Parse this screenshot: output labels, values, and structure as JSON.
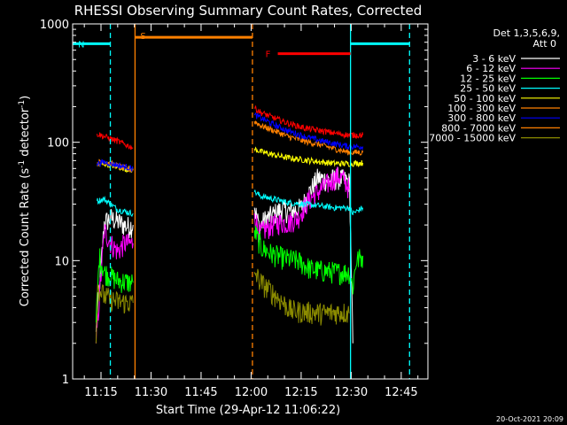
{
  "chart_data": {
    "type": "line",
    "title": "RHESSI Observing Summary Count Rates, Corrected",
    "xlabel": "Start Time (29-Apr-12 11:06:22)",
    "ylabel_main": "Corrected Count Rate (s",
    "ylabel_sup1": "-1",
    "ylabel_mid": " detector",
    "ylabel_sup2": "-1",
    "ylabel_end": ")",
    "yscale": "log",
    "ylim": [
      1,
      1000
    ],
    "xlim_minutes": [
      666.5,
      773.0
    ],
    "x_ticks": [
      {
        "t": 675,
        "label": "11:15"
      },
      {
        "t": 690,
        "label": "11:30"
      },
      {
        "t": 705,
        "label": "11:45"
      },
      {
        "t": 720,
        "label": "12:00"
      },
      {
        "t": 735,
        "label": "12:15"
      },
      {
        "t": 750,
        "label": "12:30"
      },
      {
        "t": 765,
        "label": "12:45"
      }
    ],
    "y_ticks": [
      {
        "v": 1,
        "label": "1"
      },
      {
        "v": 10,
        "label": "10"
      },
      {
        "v": 100,
        "label": "100"
      },
      {
        "v": 1000,
        "label": "1000"
      }
    ],
    "legend_title": [
      "Det 1,3,5,6,9,",
      "Att 0"
    ],
    "legend_position": "right",
    "series": [
      {
        "name": "3 - 6 keV",
        "color": "#ffffff",
        "a": [
          [
            673.5,
            2.5
          ],
          [
            676.0,
            21
          ],
          [
            678,
            23
          ],
          [
            682,
            20
          ],
          [
            683,
            19.5
          ],
          [
            684.6,
            20
          ]
        ],
        "b": [
          [
            721.0,
            28
          ],
          [
            722.5,
            19
          ],
          [
            724,
            22
          ],
          [
            726,
            24
          ],
          [
            729,
            27
          ],
          [
            732,
            26
          ],
          [
            735,
            28
          ],
          [
            738,
            40
          ],
          [
            740,
            50
          ],
          [
            743,
            48
          ],
          [
            746,
            50
          ],
          [
            748,
            48
          ],
          [
            749.5,
            46
          ],
          [
            750.5,
            2
          ]
        ]
      },
      {
        "name": "6 - 12 keV",
        "color": "#ff00ff",
        "a": [
          [
            673.5,
            2
          ],
          [
            676.0,
            18
          ],
          [
            678,
            14
          ],
          [
            680,
            12
          ],
          [
            682,
            14
          ],
          [
            684.6,
            14
          ]
        ],
        "b": [
          [
            721.0,
            25
          ],
          [
            722.5,
            17
          ],
          [
            725,
            19
          ],
          [
            728,
            21
          ],
          [
            731,
            21
          ],
          [
            734,
            23
          ],
          [
            737,
            32
          ],
          [
            740,
            38
          ],
          [
            743,
            45
          ],
          [
            746,
            52
          ],
          [
            748,
            48
          ],
          [
            749.5,
            40
          ]
        ]
      },
      {
        "name": "12 - 25 keV",
        "color": "#00ff00",
        "a": [
          [
            673.5,
            3
          ],
          [
            674.5,
            11
          ],
          [
            676.0,
            8
          ],
          [
            680,
            6.8
          ],
          [
            684.6,
            6.5
          ]
        ],
        "b": [
          [
            721.0,
            18
          ],
          [
            723,
            13
          ],
          [
            726,
            11.5
          ],
          [
            730,
            10.5
          ],
          [
            734,
            10
          ],
          [
            738,
            8.5
          ],
          [
            742,
            8.2
          ],
          [
            746,
            8
          ],
          [
            749.5,
            8
          ],
          [
            750.5,
            6
          ],
          [
            751.5,
            10
          ],
          [
            753.5,
            11
          ]
        ]
      },
      {
        "name": "25 - 50 keV",
        "color": "#00ffff",
        "a": [
          [
            673.8,
            32
          ],
          [
            676,
            33
          ],
          [
            680,
            27
          ],
          [
            684.6,
            25
          ]
        ],
        "b": [
          [
            721.0,
            38
          ],
          [
            723,
            35
          ],
          [
            727,
            33
          ],
          [
            731,
            31
          ],
          [
            736,
            30
          ],
          [
            741,
            29
          ],
          [
            745,
            28
          ],
          [
            749.5,
            28
          ],
          [
            750.5,
            25
          ],
          [
            753.5,
            28
          ]
        ]
      },
      {
        "name": "50 - 100 keV",
        "color": "#ffff00",
        "a": [
          [
            673.8,
            64
          ],
          [
            676,
            66
          ],
          [
            680,
            62
          ],
          [
            684.6,
            58
          ]
        ],
        "b": [
          [
            721.0,
            88
          ],
          [
            723,
            83
          ],
          [
            727,
            78
          ],
          [
            731,
            74
          ],
          [
            736,
            71
          ],
          [
            741,
            68
          ],
          [
            746,
            66
          ],
          [
            749.5,
            66
          ],
          [
            753.5,
            67
          ]
        ]
      },
      {
        "name": "100 - 300 keV",
        "color": "#ff8000",
        "a": [
          [
            673.8,
            67
          ],
          [
            676,
            69
          ],
          [
            680,
            63
          ],
          [
            684.6,
            58
          ]
        ],
        "b": [
          [
            721.0,
            150
          ],
          [
            723,
            138
          ],
          [
            727,
            125
          ],
          [
            731,
            112
          ],
          [
            736,
            102
          ],
          [
            741,
            95
          ],
          [
            745,
            88
          ],
          [
            749.5,
            82
          ],
          [
            753.5,
            82
          ]
        ]
      },
      {
        "name": "300 - 800 keV",
        "color": "#0000ff",
        "a": [
          [
            673.8,
            66
          ],
          [
            676,
            68
          ],
          [
            680,
            64
          ],
          [
            684.6,
            60
          ]
        ],
        "b": [
          [
            721.0,
            170
          ],
          [
            723,
            160
          ],
          [
            727,
            140
          ],
          [
            731,
            125
          ],
          [
            736,
            112
          ],
          [
            741,
            103
          ],
          [
            746,
            96
          ],
          [
            749.5,
            92
          ],
          [
            753.5,
            92
          ]
        ]
      },
      {
        "name": "800 - 7000 keV",
        "color": "#ff8000",
        "a": [],
        "b": []
      },
      {
        "name": "7000 - 15000 keV",
        "color": "#8b8b00",
        "a": [
          [
            673.5,
            2
          ],
          [
            674,
            6
          ],
          [
            676.0,
            5
          ],
          [
            680,
            4.5
          ],
          [
            684.6,
            4.4
          ]
        ],
        "b": [
          [
            721.0,
            8
          ],
          [
            723,
            6.5
          ],
          [
            726,
            5.5
          ],
          [
            729,
            4.6
          ],
          [
            732,
            3.8
          ],
          [
            737,
            3.7
          ],
          [
            742,
            3.6
          ],
          [
            747,
            3.7
          ],
          [
            749.5,
            3.6
          ]
        ]
      },
      {
        "name": "",
        "color": "#ff0000",
        "a": [
          [
            673.8,
            118
          ],
          [
            676,
            112
          ],
          [
            680,
            102
          ],
          [
            684.6,
            90
          ]
        ],
        "b": [
          [
            721.0,
            195
          ],
          [
            723,
            178
          ],
          [
            727,
            160
          ],
          [
            731,
            145
          ],
          [
            736,
            132
          ],
          [
            741,
            125
          ],
          [
            746,
            118
          ],
          [
            749.5,
            115
          ],
          [
            753.5,
            115
          ]
        ]
      }
    ],
    "flags": [
      {
        "label": "N",
        "color": "#00ffff",
        "style": "solid",
        "t0": 666.5,
        "t1": 677.8,
        "level": 680
      },
      {
        "label": "S",
        "color": "#ff8000",
        "style": "solid",
        "t0": 685.2,
        "t1": 720.4,
        "level": 770
      },
      {
        "label": "F",
        "color": "#ff0000",
        "style": "solid",
        "t0": 728.0,
        "t1": 749.8,
        "level": 560
      },
      {
        "label": "",
        "color": "#00ffff",
        "style": "solid",
        "t0": 749.8,
        "t1": 767.5,
        "level": 680
      }
    ],
    "vlines": [
      {
        "t": 677.8,
        "color": "#00ffff",
        "style": "dashed"
      },
      {
        "t": 685.2,
        "color": "#ff8000",
        "style": "solid"
      },
      {
        "t": 720.4,
        "color": "#ff8000",
        "style": "dashed"
      },
      {
        "t": 749.8,
        "color": "#00ffff",
        "style": "solid"
      },
      {
        "t": 767.5,
        "color": "#00ffff",
        "style": "dashed"
      }
    ]
  },
  "footer_timestamp": "20-Oct-2021 20:09"
}
